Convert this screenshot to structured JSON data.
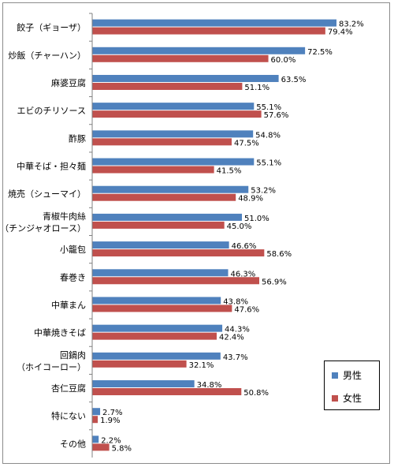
{
  "chart_data": {
    "type": "bar",
    "orientation": "horizontal",
    "categories": [
      "餃子（ギョーザ）",
      "炒飯（チャーハン）",
      "麻婆豆腐",
      "エビのチリソース",
      "酢豚",
      "中華そば・担々麺",
      "焼売（シューマイ）",
      "青椒牛肉絲\n（チンジャオロース）",
      "小籠包",
      "春巻き",
      "中華まん",
      "中華焼きそば",
      "回鍋肉\n（ホイコーロー）",
      "杏仁豆腐",
      "特にない",
      "その他"
    ],
    "series": [
      {
        "name": "男性",
        "values": [
          83.2,
          72.5,
          63.5,
          55.1,
          54.8,
          55.1,
          53.2,
          51.0,
          46.6,
          46.3,
          43.8,
          44.3,
          43.7,
          34.8,
          2.7,
          2.2
        ],
        "color": "#4f81bd"
      },
      {
        "name": "女性",
        "values": [
          79.4,
          60.0,
          51.1,
          57.6,
          47.5,
          41.5,
          48.9,
          45.0,
          58.6,
          56.9,
          47.6,
          42.4,
          32.1,
          50.8,
          1.9,
          5.8
        ],
        "color": "#c0504d"
      }
    ],
    "value_format": "%",
    "xlim": [
      0,
      100
    ],
    "title": "",
    "xlabel": "",
    "ylabel": "",
    "grid": false,
    "legend_position": "bottom-right"
  }
}
